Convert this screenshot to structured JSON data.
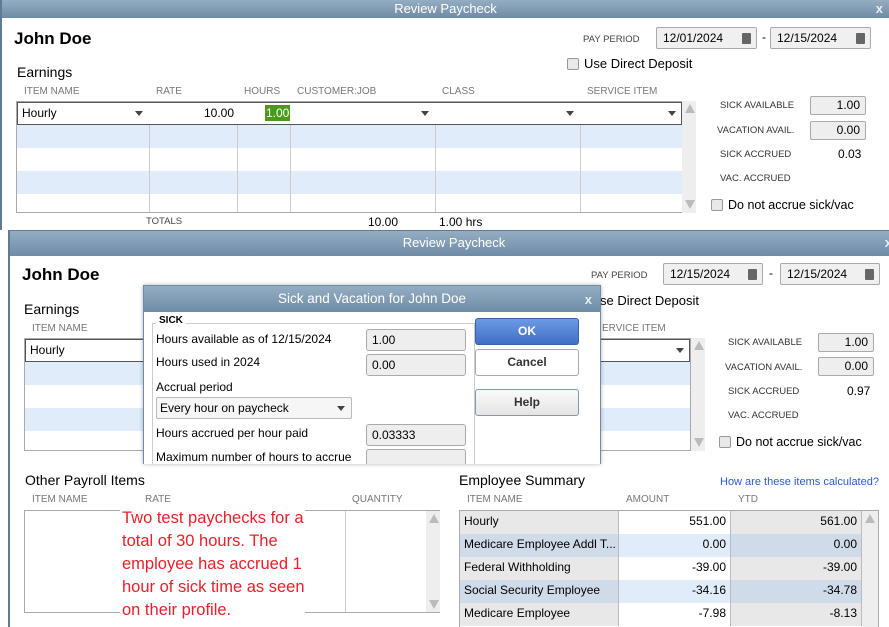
{
  "window1": {
    "title": "Review Paycheck",
    "employee": "John Doe",
    "pay_period_label": "PAY PERIOD",
    "date_from": "12/01/2024",
    "date_to": "12/15/2024",
    "direct_deposit": "Use Direct Deposit",
    "earnings_title": "Earnings",
    "columns": [
      "ITEM NAME",
      "RATE",
      "HOURS",
      "CUSTOMER:JOB",
      "CLASS",
      "SERVICE ITEM"
    ],
    "row": {
      "item": "Hourly",
      "rate": "10.00",
      "hours": "1.00"
    },
    "totals_label": "TOTALS",
    "total_rate": "10.00",
    "total_hours": "1.00",
    "hrs": "hrs",
    "sick_available_label": "SICK AVAILABLE",
    "sick_available": "1.00",
    "vacation_avail_label": "VACATION AVAIL.",
    "vacation_avail": "0.00",
    "sick_accrued_label": "SICK ACCRUED",
    "sick_accrued": "0.03",
    "vac_accrued_label": "VAC. ACCRUED",
    "no_accrue": "Do not accrue sick/vac"
  },
  "window2": {
    "title": "Review Paycheck",
    "employee": "John Doe",
    "pay_period_label": "PAY PERIOD",
    "date_from": "12/15/2024",
    "date_to": "12/15/2024",
    "direct_deposit": "se Direct Deposit",
    "earnings_title": "Earnings",
    "col_item": "ITEM NAME",
    "col_service": "ERVICE ITEM",
    "row_item": "Hourly",
    "sick_available_label": "SICK AVAILABLE",
    "sick_available": "1.00",
    "vacation_avail_label": "VACATION AVAIL.",
    "vacation_avail": "0.00",
    "sick_accrued_label": "SICK ACCRUED",
    "sick_accrued": "0.97",
    "vac_accrued_label": "VAC. ACCRUED",
    "no_accrue": "Do not accrue sick/vac",
    "other_title": "Other Payroll Items",
    "other_columns": [
      "ITEM NAME",
      "RATE",
      "QUANTITY"
    ],
    "summary_title": "Employee Summary",
    "summary_link": "How are these items calculated?",
    "summary_columns": [
      "ITEM NAME",
      "AMOUNT",
      "YTD"
    ],
    "summary_rows": [
      {
        "name": "Hourly",
        "amount": "551.00",
        "ytd": "561.00"
      },
      {
        "name": "Medicare Employee Addl T...",
        "amount": "0.00",
        "ytd": "0.00"
      },
      {
        "name": "Federal Withholding",
        "amount": "-39.00",
        "ytd": "-39.00"
      },
      {
        "name": "Social Security Employee",
        "amount": "-34.16",
        "ytd": "-34.78"
      },
      {
        "name": "Medicare Employee",
        "amount": "-7.98",
        "ytd": "-8.13"
      }
    ]
  },
  "dialog": {
    "title": "Sick and Vacation for John Doe",
    "group": "SICK",
    "hours_available_label": "Hours available as of 12/15/2024",
    "hours_available": "1.00",
    "hours_used_label": "Hours used in 2024",
    "hours_used": "0.00",
    "accrual_label": "Accrual period",
    "accrual_value": "Every hour on paycheck",
    "accrued_per_hour_label": "Hours accrued per hour paid",
    "accrued_per_hour": "0.03333",
    "max_hours_label": "Maximum number of hours to accrue",
    "ok": "OK",
    "cancel": "Cancel",
    "help": "Help"
  },
  "annotation": "Two test paychecks for a total of 30 hours. The employee has accrued 1 hour of sick time as seen on their profile.",
  "colors": {
    "titlebar": "#7f9ab1",
    "alt_row": "#e1ecfa",
    "ok_button": "#4f7fd0",
    "annotation": "#e8202a",
    "link": "#2a5bd7",
    "hours_highlight": "#4c9a1c"
  }
}
